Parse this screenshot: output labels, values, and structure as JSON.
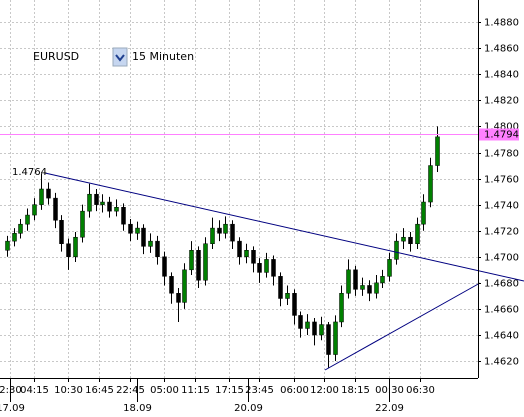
{
  "chart_data": {
    "type": "candlestick",
    "toolbar": {
      "symbol": "EURUSD",
      "timeframe": "15 Minuten"
    },
    "annotation": "1.4764",
    "up_color": "#008000",
    "down_color": "#000000",
    "grid": true,
    "xlim": [
      -1,
      69
    ],
    "ylim": [
      1.4607,
      1.4897
    ],
    "yticks": [
      {
        "value": 1.488,
        "label": "1.4880"
      },
      {
        "value": 1.486,
        "label": "1.4860"
      },
      {
        "value": 1.484,
        "label": "1.4840"
      },
      {
        "value": 1.482,
        "label": "1.4820"
      },
      {
        "value": 1.48,
        "label": "1.4800"
      },
      {
        "value": 1.478,
        "label": "1.4780"
      },
      {
        "value": 1.476,
        "label": "1.4760"
      },
      {
        "value": 1.474,
        "label": "1.4740"
      },
      {
        "value": 1.472,
        "label": "1.4720"
      },
      {
        "value": 1.47,
        "label": "1.4700"
      },
      {
        "value": 1.468,
        "label": "1.4680"
      },
      {
        "value": 1.466,
        "label": "1.4660"
      },
      {
        "value": 1.464,
        "label": "1.4640"
      },
      {
        "value": 1.462,
        "label": "1.4620"
      }
    ],
    "xticks": [
      {
        "value": 0.5,
        "label": "2:30"
      },
      {
        "value": 4,
        "label": "04:15"
      },
      {
        "value": 9,
        "label": "10:30"
      },
      {
        "value": 13.5,
        "label": "16:45"
      },
      {
        "value": 18,
        "label": "22:45"
      },
      {
        "value": 23,
        "label": "05:00"
      },
      {
        "value": 27.5,
        "label": "11:15"
      },
      {
        "value": 32.5,
        "label": "17:15"
      },
      {
        "value": 37,
        "label": "23:45"
      },
      {
        "value": 42,
        "label": "06:00"
      },
      {
        "value": 46.5,
        "label": "12:00"
      },
      {
        "value": 51,
        "label": "18:15"
      },
      {
        "value": 56,
        "label": "00:30"
      },
      {
        "value": 60.5,
        "label": "06:30"
      }
    ],
    "date_ticks": [
      {
        "value": 0.5,
        "label": "17.09"
      },
      {
        "value": 19,
        "label": "18.09"
      },
      {
        "value": 35.3,
        "label": "20.09"
      },
      {
        "value": 56,
        "label": "22.09"
      }
    ],
    "hline": {
      "value": 1.4794,
      "color": "#ff80ff"
    },
    "open": [
      1.4705,
      1.4712,
      1.4718,
      1.4725,
      1.4732,
      1.474,
      1.4752,
      1.4745,
      1.4728,
      1.471,
      1.47,
      1.4715,
      1.4735,
      1.4748,
      1.474,
      1.4742,
      1.4735,
      1.4738,
      1.4725,
      1.4718,
      1.4722,
      1.4708,
      1.4712,
      1.47,
      1.4685,
      1.4672,
      1.4665,
      1.469,
      1.4705,
      1.4682,
      1.471,
      1.4722,
      1.4718,
      1.4725,
      1.4712,
      1.47,
      1.4705,
      1.4695,
      1.4688,
      1.4698,
      1.4685,
      1.4668,
      1.4672,
      1.4655,
      1.4645,
      1.465,
      1.464,
      1.4648,
      1.4625,
      1.465,
      1.4672,
      1.469,
      1.4675,
      1.4678,
      1.4672,
      1.468,
      1.4685,
      1.4698,
      1.4712,
      1.4715,
      1.471,
      1.4725,
      1.4742,
      1.477
    ],
    "high": [
      1.4716,
      1.4722,
      1.4729,
      1.4737,
      1.4745,
      1.4764,
      1.4757,
      1.4749,
      1.4732,
      1.4714,
      1.4719,
      1.474,
      1.4756,
      1.4752,
      1.4748,
      1.4746,
      1.4744,
      1.4741,
      1.4729,
      1.4727,
      1.4725,
      1.4718,
      1.4716,
      1.4704,
      1.4688,
      1.4676,
      1.4695,
      1.4712,
      1.4708,
      1.4715,
      1.473,
      1.4728,
      1.4731,
      1.4728,
      1.4715,
      1.471,
      1.4708,
      1.4699,
      1.4703,
      1.4701,
      1.4688,
      1.4678,
      1.4675,
      1.4658,
      1.4656,
      1.4653,
      1.4654,
      1.465,
      1.4655,
      1.4678,
      1.4698,
      1.4693,
      1.4684,
      1.4682,
      1.4686,
      1.469,
      1.4703,
      1.4718,
      1.4722,
      1.4719,
      1.473,
      1.4748,
      1.4776,
      1.48
    ],
    "low": [
      1.47,
      1.4708,
      1.4714,
      1.472,
      1.4728,
      1.4736,
      1.474,
      1.4722,
      1.4704,
      1.469,
      1.4696,
      1.4711,
      1.473,
      1.4735,
      1.4734,
      1.473,
      1.4731,
      1.472,
      1.4712,
      1.4713,
      1.4702,
      1.4703,
      1.4694,
      1.4678,
      1.4664,
      1.465,
      1.466,
      1.4686,
      1.4676,
      1.4678,
      1.4706,
      1.4712,
      1.4714,
      1.4706,
      1.4694,
      1.4695,
      1.4688,
      1.468,
      1.4684,
      1.4678,
      1.4662,
      1.4663,
      1.4648,
      1.4638,
      1.464,
      1.4632,
      1.4636,
      1.4615,
      1.462,
      1.4646,
      1.4668,
      1.467,
      1.467,
      1.4666,
      1.4668,
      1.4676,
      1.4681,
      1.4694,
      1.4706,
      1.4704,
      1.4706,
      1.472,
      1.4738,
      1.4765
    ],
    "close": [
      1.4712,
      1.4718,
      1.4725,
      1.4732,
      1.474,
      1.4752,
      1.4745,
      1.4728,
      1.471,
      1.47,
      1.4715,
      1.4735,
      1.4748,
      1.474,
      1.4742,
      1.4735,
      1.4738,
      1.4725,
      1.4718,
      1.4722,
      1.4708,
      1.4712,
      1.47,
      1.4685,
      1.4672,
      1.4665,
      1.469,
      1.4705,
      1.4682,
      1.471,
      1.4722,
      1.4718,
      1.4725,
      1.4712,
      1.47,
      1.4705,
      1.4695,
      1.4688,
      1.4698,
      1.4685,
      1.4668,
      1.4672,
      1.4655,
      1.4645,
      1.465,
      1.464,
      1.4648,
      1.4625,
      1.465,
      1.4672,
      1.469,
      1.4675,
      1.4678,
      1.4672,
      1.468,
      1.4685,
      1.4698,
      1.4712,
      1.4715,
      1.471,
      1.4725,
      1.4742,
      1.477,
      1.4792
    ]
  }
}
